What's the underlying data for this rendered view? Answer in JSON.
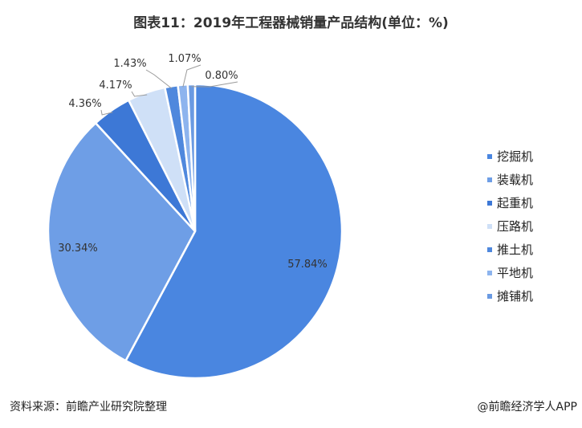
{
  "title": "图表11：2019年工程器械销量产品结构(单位：%)",
  "source": "资料来源：前瞻产业研究院整理",
  "brand": "@前瞻经济学人APP",
  "chart_data": {
    "type": "pie",
    "categories": [
      "挖掘机",
      "装载机",
      "起重机",
      "压路机",
      "推土机",
      "平地机",
      "摊铺机"
    ],
    "values": [
      57.84,
      30.34,
      4.36,
      4.17,
      1.43,
      1.07,
      0.8
    ],
    "labels": [
      "57.84%",
      "30.34%",
      "4.36%",
      "4.17%",
      "1.43%",
      "1.07%",
      "0.80%"
    ],
    "colors": [
      "#4a86e0",
      "#6e9ee6",
      "#3d78d6",
      "#cfe0f7",
      "#4f88dd",
      "#8db4ee",
      "#6a9ae2"
    ],
    "legend_position": "right"
  }
}
